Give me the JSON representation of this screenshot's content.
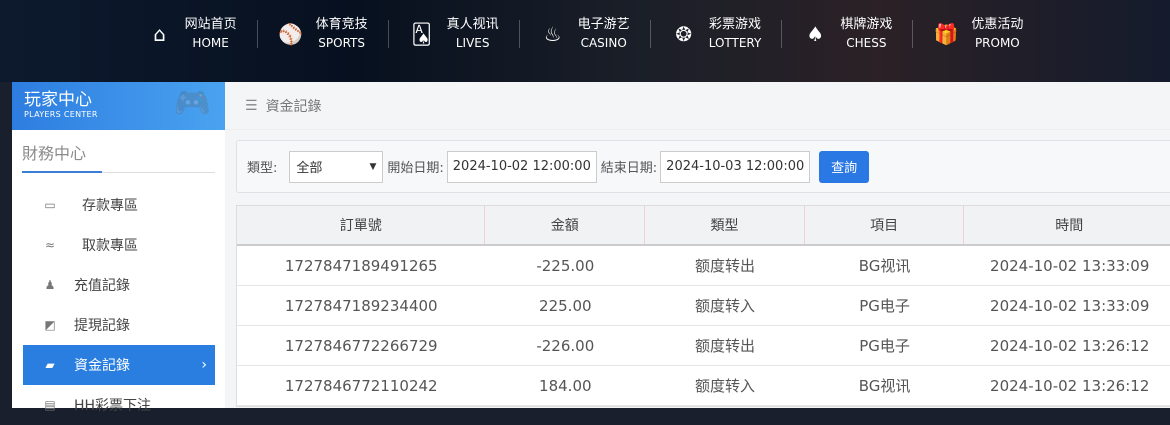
{
  "nav": [
    {
      "cn": "网站首页",
      "en": "HOME",
      "icon": "home-icon",
      "glyph": "⌂"
    },
    {
      "cn": "体育竞技",
      "en": "SPORTS",
      "icon": "ball-icon",
      "glyph": "⚾"
    },
    {
      "cn": "真人视讯",
      "en": "LIVES",
      "icon": "cards-icon",
      "glyph": "🂡"
    },
    {
      "cn": "电子游艺",
      "en": "CASINO",
      "icon": "slot-icon",
      "glyph": "♨"
    },
    {
      "cn": "彩票游戏",
      "en": "LOTTERY",
      "icon": "lottery-balls-icon",
      "glyph": "❂"
    },
    {
      "cn": "棋牌游戏",
      "en": "CHESS",
      "icon": "spade-icon",
      "glyph": "♠"
    },
    {
      "cn": "优惠活动",
      "en": "PROMO",
      "icon": "gift-icon",
      "glyph": "🎁"
    }
  ],
  "sidebar": {
    "title": "玩家中心",
    "subtitle": "PLAYERS CENTER",
    "section": "財務中心",
    "items": [
      {
        "label": "存款專區",
        "icon": "card-icon",
        "glyph": "▭"
      },
      {
        "label": "取款專區",
        "icon": "hand-money-icon",
        "glyph": "≈"
      },
      {
        "label": "充值記錄",
        "icon": "money-bag-icon",
        "glyph": "♟"
      },
      {
        "label": "提現記錄",
        "icon": "wallet-icon",
        "glyph": "◩"
      },
      {
        "label": "資金記錄",
        "icon": "fund-icon",
        "glyph": "▰"
      },
      {
        "label": "HH彩票下注",
        "icon": "list-icon",
        "glyph": "▤"
      }
    ]
  },
  "breadcrumb": "資金記錄",
  "filter": {
    "type_label": "類型:",
    "type_value": "全部",
    "start_label": "開始日期:",
    "start_value": "2024-10-02 12:00:00",
    "end_label": "結束日期:",
    "end_value": "2024-10-03 12:00:00",
    "query": "查詢"
  },
  "table": {
    "headers": [
      "訂單號",
      "金額",
      "類型",
      "項目",
      "時間"
    ],
    "rows": [
      [
        "1727847189491265",
        "-225.00",
        "额度转出",
        "BG视讯",
        "2024-10-02 13:33:09"
      ],
      [
        "1727847189234400",
        "225.00",
        "额度转入",
        "PG电子",
        "2024-10-02 13:33:09"
      ],
      [
        "1727846772266729",
        "-226.00",
        "额度转出",
        "PG电子",
        "2024-10-02 13:26:12"
      ],
      [
        "1727846772110242",
        "184.00",
        "额度转入",
        "BG视讯",
        "2024-10-02 13:26:12"
      ]
    ]
  }
}
